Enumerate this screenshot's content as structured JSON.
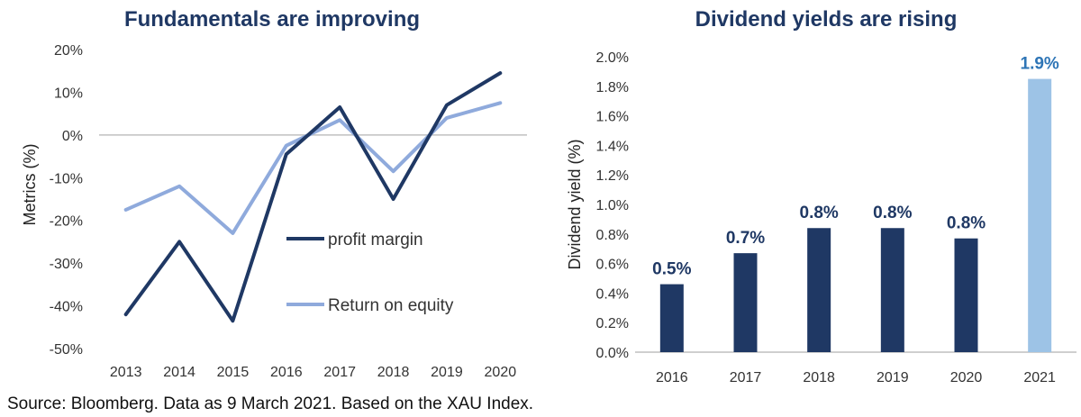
{
  "source_note": "Source: Bloomberg. Data as 9 March 2021. Based on the XAU Index.",
  "colors": {
    "dark_navy": "#1f3864",
    "light_blue": "#8faadc",
    "bar_highlight": "#9dc3e6",
    "zero_line": "#c0c0c0",
    "highlight_label": "#2e75b6"
  },
  "chart_data": [
    {
      "type": "line",
      "title": "Fundamentals are improving",
      "xlabel": "",
      "ylabel": "Metrics (%)",
      "x": [
        "2013",
        "2014",
        "2015",
        "2016",
        "2017",
        "2018",
        "2019",
        "2020"
      ],
      "ylim": [
        -50,
        20
      ],
      "yticks": [
        "20%",
        "10%",
        "0%",
        "-10%",
        "-20%",
        "-30%",
        "-40%",
        "-50%"
      ],
      "ytick_values": [
        20,
        10,
        0,
        -10,
        -20,
        -30,
        -40,
        -50
      ],
      "legend_placement": "inside-center",
      "series": [
        {
          "name": "profit margin",
          "color": "#1f3864",
          "values": [
            -42,
            -25,
            -43.5,
            -4.5,
            6.5,
            -15,
            7,
            14.5
          ]
        },
        {
          "name": "Return on equity",
          "color": "#8faadc",
          "values": [
            -17.5,
            -12,
            -23,
            -2.5,
            3.5,
            -8.5,
            4,
            7.5
          ]
        }
      ]
    },
    {
      "type": "bar",
      "title": "Dividend yields are rising",
      "xlabel": "",
      "ylabel": "Dividend yield (%)",
      "categories": [
        "2016",
        "2017",
        "2018",
        "2019",
        "2020",
        "2021"
      ],
      "values": [
        0.46,
        0.67,
        0.84,
        0.84,
        0.77,
        1.85
      ],
      "data_labels": [
        "0.5%",
        "0.7%",
        "0.8%",
        "0.8%",
        "0.8%",
        "1.9%"
      ],
      "ylim": [
        0,
        2.0
      ],
      "yticks": [
        "2.0%",
        "1.8%",
        "1.6%",
        "1.4%",
        "1.2%",
        "1.0%",
        "0.8%",
        "0.6%",
        "0.4%",
        "0.2%",
        "0.0%"
      ],
      "ytick_values": [
        2.0,
        1.8,
        1.6,
        1.4,
        1.2,
        1.0,
        0.8,
        0.6,
        0.4,
        0.2,
        0.0
      ],
      "bar_colors": [
        "#1f3864",
        "#1f3864",
        "#1f3864",
        "#1f3864",
        "#1f3864",
        "#9dc3e6"
      ],
      "label_colors": [
        "#1f3864",
        "#1f3864",
        "#1f3864",
        "#1f3864",
        "#1f3864",
        "#2e75b6"
      ]
    }
  ]
}
